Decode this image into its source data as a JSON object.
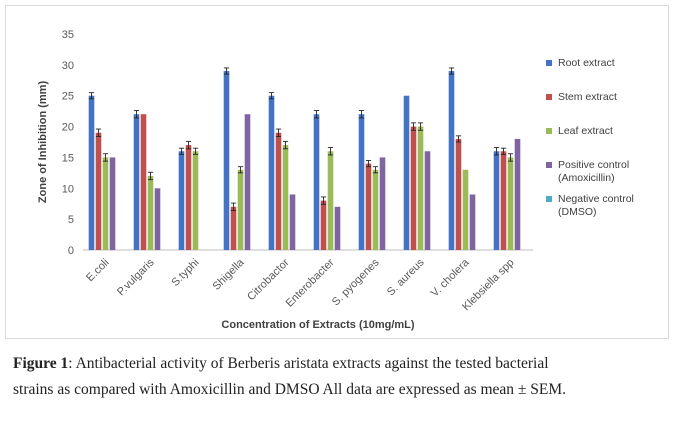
{
  "chart_data": {
    "type": "bar",
    "xlabel": "Concentration of Extracts (10mg/mL)",
    "ylabel": "Zone of Inhibition (mm)",
    "ylim": [
      0,
      35
    ],
    "yticks": [
      "0",
      "5",
      "10",
      "15",
      "20",
      "25",
      "30",
      "35"
    ],
    "grid": false,
    "legend_position": "right",
    "categories": [
      "E.coli",
      "P.vulgaris",
      "S.typhi",
      "Shigella",
      "Citrobactor",
      "Enterobacter",
      "S. pyogenes",
      "S. aureus",
      "V. cholera",
      "Klebsiella spp"
    ],
    "series": [
      {
        "name": "Root extract",
        "color": "#4472C4",
        "values": [
          25,
          22,
          16,
          29,
          25,
          22,
          22,
          25,
          29,
          16
        ],
        "errors": [
          0.5,
          0.6,
          0.5,
          0.5,
          0.5,
          0.6,
          0.6,
          0,
          0.5,
          0.6
        ]
      },
      {
        "name": "Stem extract",
        "color": "#C0504D",
        "values": [
          19,
          22,
          17,
          7,
          19,
          8,
          14,
          20,
          18,
          16
        ],
        "errors": [
          0.6,
          0,
          0.6,
          0.6,
          0.6,
          0.6,
          0.5,
          0.6,
          0.5,
          0.5
        ]
      },
      {
        "name": "Leaf extract",
        "color": "#9BBB59",
        "values": [
          15,
          12,
          16,
          13,
          17,
          16,
          13,
          20,
          13,
          15
        ],
        "errors": [
          0.6,
          0.6,
          0.5,
          0.5,
          0.6,
          0.6,
          0.5,
          0.6,
          0,
          0.6
        ]
      },
      {
        "name": "Positive control (Amoxicillin)",
        "name_lines": [
          "Positive control",
          "(Amoxicillin)"
        ],
        "color": "#8064A2",
        "values": [
          15,
          10,
          0,
          22,
          9,
          7,
          15,
          16,
          9,
          18
        ],
        "errors": [
          0,
          0,
          0,
          0,
          0,
          0,
          0,
          0,
          0,
          0
        ]
      },
      {
        "name": "Negative control (DMSO)",
        "name_lines": [
          "Negative control",
          "(DMSO)"
        ],
        "color": "#4BACC6",
        "values": [
          0,
          0,
          0,
          0,
          0,
          0,
          0,
          0,
          0,
          0
        ],
        "errors": [
          0,
          0,
          0,
          0,
          0,
          0,
          0,
          0,
          0,
          0
        ]
      }
    ]
  },
  "caption": {
    "label": "Figure 1",
    "text": ": Antibacterial activity of Berberis aristata extracts against the tested bacterial strains as compared with Amoxicillin and DMSO All data are expressed as mean ± SEM."
  }
}
